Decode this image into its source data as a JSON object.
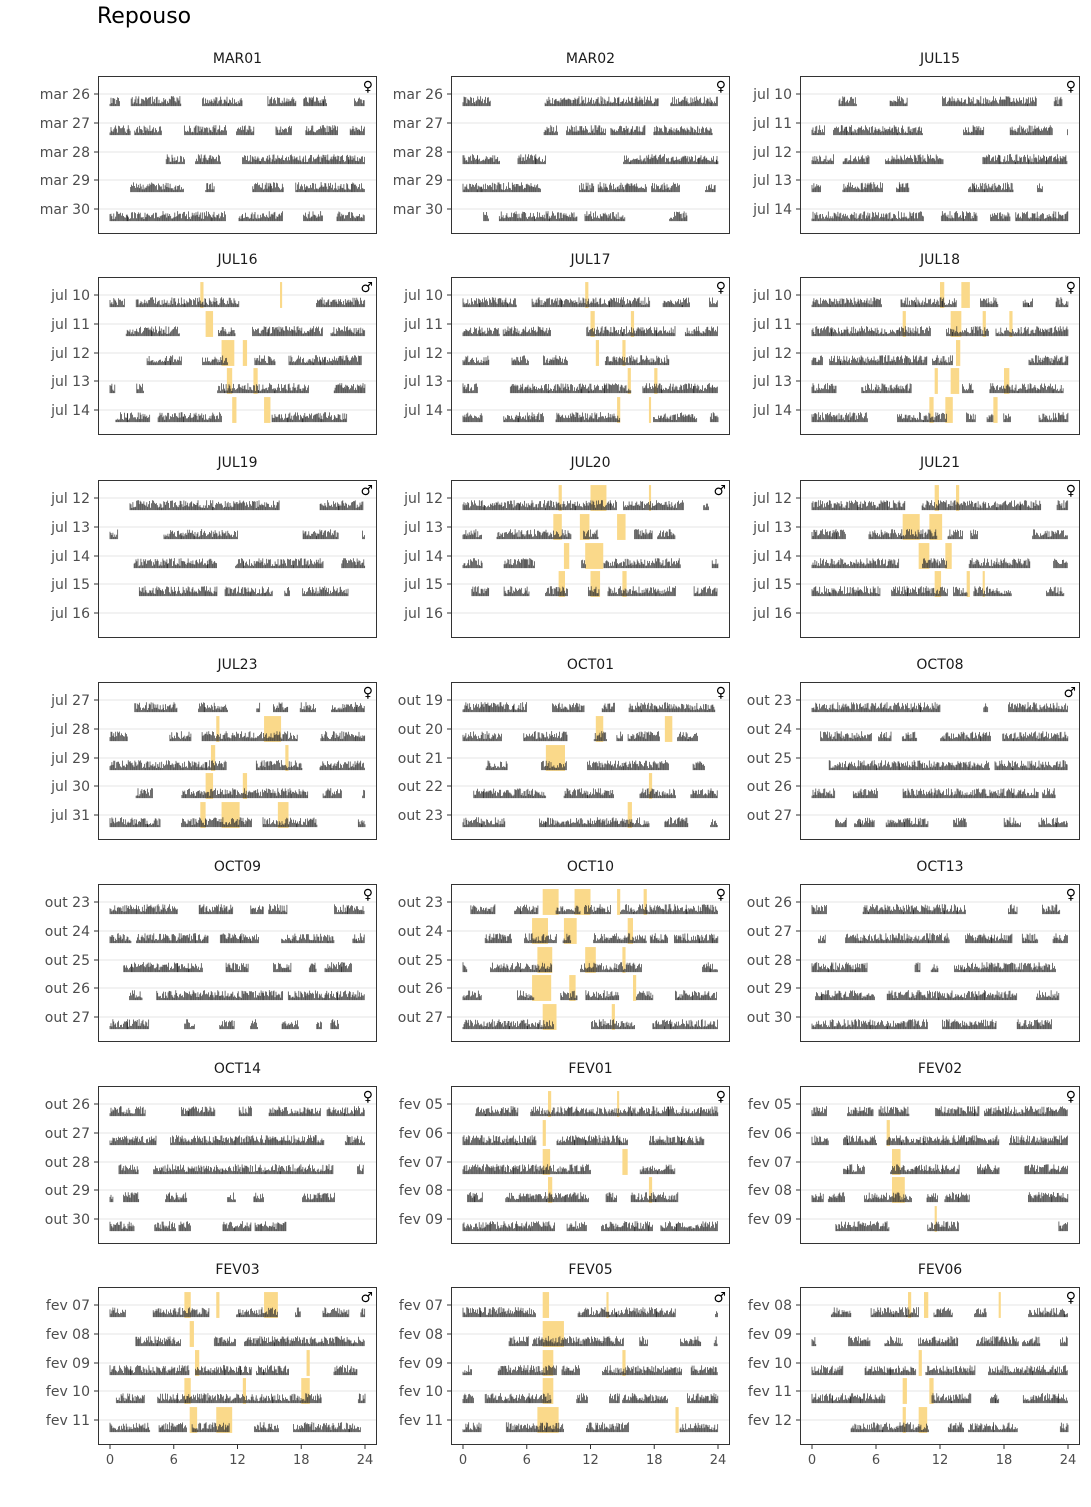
{
  "title": "Repouso",
  "chart_data": {
    "type": "bar",
    "title": "Repouso",
    "layout": "facet-grid-7x3",
    "x_ticks": [
      0,
      6,
      12,
      18,
      24
    ],
    "xlim": [
      0,
      24
    ],
    "grid": true,
    "colors": {
      "activity": "#333333",
      "rest": "#FAD98A",
      "grid": "#ebebeb",
      "frame": "#333333"
    },
    "panels": [
      {
        "id": "MAR01",
        "sex": "♀",
        "days": [
          "mar 26",
          "mar 27",
          "mar 28",
          "mar 29",
          "mar 30"
        ],
        "rest": []
      },
      {
        "id": "MAR02",
        "sex": "♀",
        "days": [
          "mar 26",
          "mar 27",
          "mar 28",
          "mar 29",
          "mar 30"
        ],
        "rest": []
      },
      {
        "id": "JUL15",
        "sex": "♀",
        "days": [
          "jul 10",
          "jul 11",
          "jul 12",
          "jul 13",
          "jul 14"
        ],
        "rest": []
      },
      {
        "id": "JUL16",
        "sex": "♂",
        "days": [
          "jul 10",
          "jul 11",
          "jul 12",
          "jul 13",
          "jul 14"
        ],
        "rest": [
          [
            0,
            8.5,
            0.3
          ],
          [
            0,
            16.0,
            0.2
          ],
          [
            1,
            9.0,
            0.7
          ],
          [
            2,
            10.5,
            1.2
          ],
          [
            2,
            12.5,
            0.4
          ],
          [
            3,
            11.0,
            0.5
          ],
          [
            3,
            13.5,
            0.4
          ],
          [
            4,
            11.5,
            0.4
          ],
          [
            4,
            14.5,
            0.6
          ]
        ]
      },
      {
        "id": "JUL17",
        "sex": "♀",
        "days": [
          "jul 10",
          "jul 11",
          "jul 12",
          "jul 13",
          "jul 14"
        ],
        "rest": [
          [
            0,
            11.5,
            0.3
          ],
          [
            1,
            12.0,
            0.4
          ],
          [
            1,
            15.8,
            0.3
          ],
          [
            2,
            12.5,
            0.3
          ],
          [
            2,
            15.0,
            0.3
          ],
          [
            3,
            15.5,
            0.3
          ],
          [
            3,
            18.0,
            0.3
          ],
          [
            4,
            14.5,
            0.3
          ],
          [
            4,
            17.5,
            0.2
          ]
        ]
      },
      {
        "id": "JUL18",
        "sex": "♀",
        "days": [
          "jul 10",
          "jul 11",
          "jul 12",
          "jul 13",
          "jul 14"
        ],
        "rest": [
          [
            0,
            12.0,
            0.4
          ],
          [
            0,
            14.0,
            0.8
          ],
          [
            1,
            8.5,
            0.3
          ],
          [
            1,
            13.0,
            1.0
          ],
          [
            1,
            16.0,
            0.3
          ],
          [
            1,
            18.5,
            0.3
          ],
          [
            2,
            13.5,
            0.4
          ],
          [
            3,
            11.5,
            0.3
          ],
          [
            3,
            13.0,
            0.8
          ],
          [
            3,
            18.0,
            0.5
          ],
          [
            4,
            11.0,
            0.4
          ],
          [
            4,
            12.5,
            0.7
          ],
          [
            4,
            17.0,
            0.4
          ]
        ]
      },
      {
        "id": "JUL19",
        "sex": "♂",
        "days": [
          "jul 12",
          "jul 13",
          "jul 14",
          "jul 15",
          "jul 16"
        ],
        "rest": []
      },
      {
        "id": "JUL20",
        "sex": "♂",
        "days": [
          "jul 12",
          "jul 13",
          "jul 14",
          "jul 15",
          "jul 16"
        ],
        "rest": [
          [
            0,
            9.0,
            0.3
          ],
          [
            0,
            12.0,
            1.5
          ],
          [
            0,
            17.5,
            0.2
          ],
          [
            1,
            8.5,
            0.8
          ],
          [
            1,
            11.0,
            0.9
          ],
          [
            1,
            14.5,
            0.8
          ],
          [
            2,
            9.5,
            0.5
          ],
          [
            2,
            11.5,
            1.7
          ],
          [
            3,
            9.0,
            0.6
          ],
          [
            3,
            12.0,
            0.9
          ],
          [
            3,
            15.0,
            0.4
          ]
        ]
      },
      {
        "id": "JUL21",
        "sex": "♀",
        "days": [
          "jul 12",
          "jul 13",
          "jul 14",
          "jul 15",
          "jul 16"
        ],
        "rest": [
          [
            0,
            11.5,
            0.4
          ],
          [
            0,
            13.5,
            0.3
          ],
          [
            1,
            8.5,
            1.6
          ],
          [
            1,
            11.0,
            1.2
          ],
          [
            2,
            10.0,
            1.0
          ],
          [
            2,
            12.5,
            0.6
          ],
          [
            3,
            11.5,
            0.6
          ],
          [
            3,
            14.5,
            0.3
          ],
          [
            3,
            16.0,
            0.2
          ]
        ]
      },
      {
        "id": "JUL23",
        "sex": "♀",
        "days": [
          "jul 27",
          "jul 28",
          "jul 29",
          "jul 30",
          "jul 31"
        ],
        "rest": [
          [
            1,
            10.0,
            0.3
          ],
          [
            1,
            14.5,
            1.6
          ],
          [
            2,
            9.5,
            0.4
          ],
          [
            2,
            16.5,
            0.3
          ],
          [
            3,
            9.0,
            0.7
          ],
          [
            3,
            12.5,
            0.4
          ],
          [
            4,
            8.5,
            0.5
          ],
          [
            4,
            10.5,
            1.7
          ],
          [
            4,
            15.8,
            1.0
          ]
        ]
      },
      {
        "id": "OCT01",
        "sex": "♀",
        "days": [
          "out 19",
          "out 20",
          "out 21",
          "out 22",
          "out 23"
        ],
        "rest": [
          [
            1,
            12.5,
            0.7
          ],
          [
            1,
            19.0,
            0.7
          ],
          [
            2,
            7.8,
            1.8
          ],
          [
            3,
            17.5,
            0.3
          ],
          [
            4,
            15.5,
            0.4
          ]
        ]
      },
      {
        "id": "OCT08",
        "sex": "♂",
        "days": [
          "out 23",
          "out 24",
          "out 25",
          "out 26",
          "out 27"
        ],
        "rest": []
      },
      {
        "id": "OCT09",
        "sex": "♀",
        "days": [
          "out 23",
          "out 24",
          "out 25",
          "out 26",
          "out 27"
        ],
        "rest": []
      },
      {
        "id": "OCT10",
        "sex": "♀",
        "days": [
          "out 23",
          "out 24",
          "out 25",
          "out 26",
          "out 27"
        ],
        "rest": [
          [
            0,
            7.5,
            1.5
          ],
          [
            0,
            10.5,
            1.5
          ],
          [
            0,
            14.5,
            0.3
          ],
          [
            0,
            17.0,
            0.3
          ],
          [
            1,
            6.5,
            1.5
          ],
          [
            1,
            9.5,
            1.2
          ],
          [
            1,
            15.5,
            0.5
          ],
          [
            2,
            7.0,
            1.4
          ],
          [
            2,
            11.5,
            1.0
          ],
          [
            2,
            15.0,
            0.3
          ],
          [
            3,
            6.5,
            1.8
          ],
          [
            3,
            10.0,
            0.6
          ],
          [
            3,
            16.0,
            0.3
          ],
          [
            4,
            7.5,
            1.3
          ],
          [
            4,
            14.0,
            0.3
          ]
        ]
      },
      {
        "id": "OCT13",
        "sex": "♀",
        "days": [
          "out 26",
          "out 27",
          "out 28",
          "out 29",
          "out 30"
        ],
        "rest": []
      },
      {
        "id": "OCT14",
        "sex": "♀",
        "days": [
          "out 26",
          "out 27",
          "out 28",
          "out 29",
          "out 30"
        ],
        "rest": []
      },
      {
        "id": "FEV01",
        "sex": "♀",
        "days": [
          "fev 05",
          "fev 06",
          "fev 07",
          "fev 08",
          "fev 09"
        ],
        "rest": [
          [
            0,
            8.0,
            0.3
          ],
          [
            0,
            14.5,
            0.2
          ],
          [
            1,
            7.5,
            0.3
          ],
          [
            2,
            7.5,
            0.7
          ],
          [
            2,
            15.0,
            0.5
          ],
          [
            3,
            8.0,
            0.4
          ],
          [
            3,
            17.5,
            0.3
          ]
        ]
      },
      {
        "id": "FEV02",
        "sex": "♀",
        "days": [
          "fev 05",
          "fev 06",
          "fev 07",
          "fev 08",
          "fev 09"
        ],
        "rest": [
          [
            1,
            7.0,
            0.3
          ],
          [
            2,
            7.5,
            0.8
          ],
          [
            3,
            7.5,
            1.2
          ],
          [
            4,
            11.5,
            0.2
          ]
        ]
      },
      {
        "id": "FEV03",
        "sex": "♂",
        "days": [
          "fev 07",
          "fev 08",
          "fev 09",
          "fev 10",
          "fev 11"
        ],
        "rest": [
          [
            0,
            7.0,
            0.6
          ],
          [
            0,
            10.0,
            0.3
          ],
          [
            0,
            14.5,
            1.3
          ],
          [
            1,
            7.5,
            0.4
          ],
          [
            2,
            8.0,
            0.4
          ],
          [
            2,
            18.5,
            0.3
          ],
          [
            3,
            7.0,
            0.6
          ],
          [
            3,
            12.5,
            0.3
          ],
          [
            3,
            18.0,
            0.8
          ],
          [
            4,
            7.5,
            0.7
          ],
          [
            4,
            10.0,
            1.5
          ]
        ]
      },
      {
        "id": "FEV05",
        "sex": "♂",
        "days": [
          "fev 07",
          "fev 08",
          "fev 09",
          "fev 10",
          "fev 11"
        ],
        "rest": [
          [
            0,
            7.5,
            0.6
          ],
          [
            0,
            13.5,
            0.2
          ],
          [
            1,
            7.5,
            2.0
          ],
          [
            2,
            7.5,
            1.0
          ],
          [
            2,
            15.0,
            0.3
          ],
          [
            3,
            7.5,
            1.0
          ],
          [
            4,
            7.0,
            2.0
          ],
          [
            4,
            20.0,
            0.3
          ]
        ]
      },
      {
        "id": "FEV06",
        "sex": "♀",
        "days": [
          "fev 08",
          "fev 09",
          "fev 10",
          "fev 11",
          "fev 12"
        ],
        "rest": [
          [
            0,
            9.0,
            0.3
          ],
          [
            0,
            10.5,
            0.4
          ],
          [
            0,
            17.5,
            0.2
          ],
          [
            2,
            10.0,
            0.3
          ],
          [
            3,
            8.5,
            0.4
          ],
          [
            3,
            11.0,
            0.4
          ],
          [
            4,
            8.5,
            0.3
          ],
          [
            4,
            10.0,
            0.8
          ]
        ]
      }
    ]
  }
}
